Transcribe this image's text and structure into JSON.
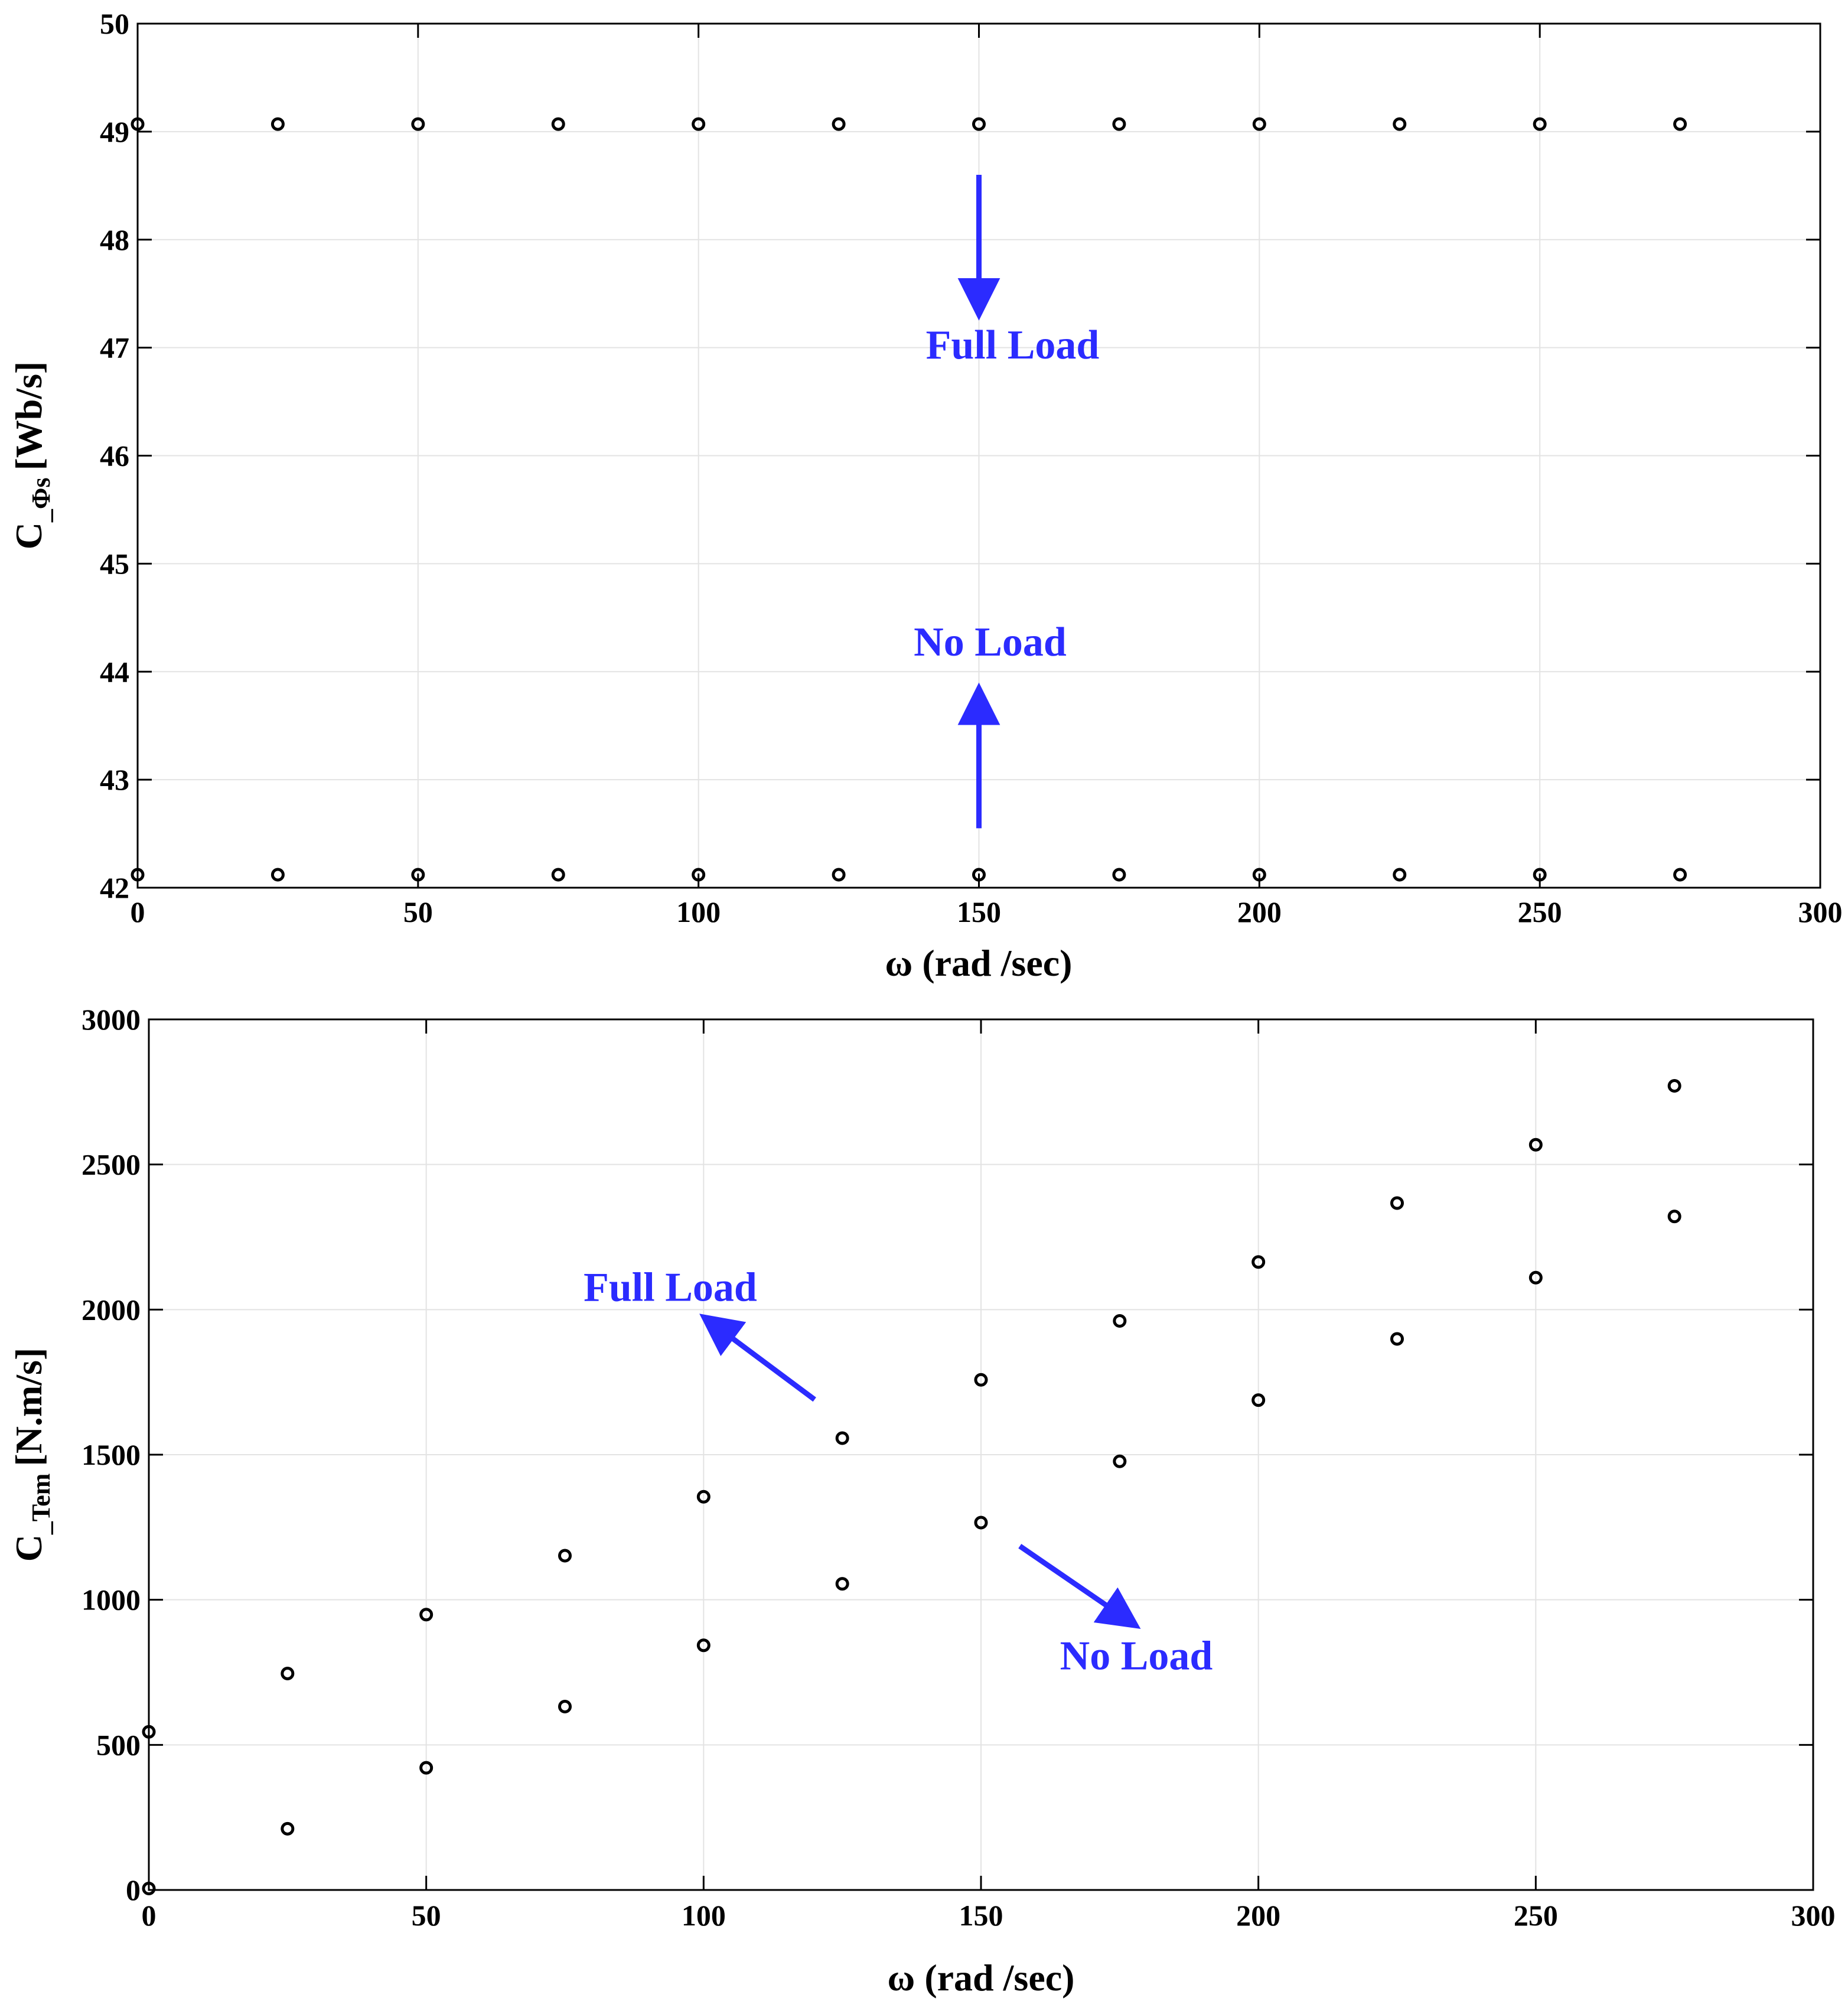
{
  "chart_data": [
    {
      "type": "scatter",
      "xlabel": "ω (rad /sec)",
      "ylabel_main": "C",
      "ylabel_sub": "_Φs",
      "ylabel_unit": "[Wb/s]",
      "xlim": [
        0,
        300
      ],
      "ylim": [
        42,
        50
      ],
      "xticks": [
        0,
        50,
        100,
        150,
        200,
        250,
        300
      ],
      "yticks": [
        42,
        43,
        44,
        45,
        46,
        47,
        48,
        49,
        50
      ],
      "grid": true,
      "series": [
        {
          "x": [
            0,
            25,
            50,
            75,
            100,
            125,
            150,
            175,
            200,
            225,
            250,
            275
          ],
          "y": [
            49.07,
            49.07,
            49.07,
            49.07,
            49.07,
            49.07,
            49.07,
            49.07,
            49.07,
            49.07,
            49.07,
            49.07
          ]
        },
        {
          "x": [
            0,
            25,
            50,
            75,
            100,
            125,
            150,
            175,
            200,
            225,
            250,
            275
          ],
          "y": [
            42.12,
            42.12,
            42.12,
            42.12,
            42.12,
            42.12,
            42.12,
            42.12,
            42.12,
            42.12,
            42.12,
            42.12
          ]
        }
      ],
      "annotations": [
        {
          "text": "Full Load",
          "label_x": 156,
          "label_y": 46.9,
          "arrow_from": [
            150,
            48.6
          ],
          "arrow_to": [
            150,
            47.3
          ]
        },
        {
          "text": "No Load",
          "label_x": 152,
          "label_y": 44.15,
          "arrow_from": [
            150,
            42.55
          ],
          "arrow_to": [
            150,
            43.85
          ]
        }
      ],
      "annotation_color": "#2b2bff"
    },
    {
      "type": "scatter",
      "xlabel": "ω (rad /sec)",
      "ylabel_main": "C",
      "ylabel_sub": "_Tem",
      "ylabel_unit": "[N.m/s]",
      "xlim": [
        0,
        300
      ],
      "ylim": [
        0,
        3000
      ],
      "xticks": [
        0,
        50,
        100,
        150,
        200,
        250,
        300
      ],
      "yticks": [
        0,
        500,
        1000,
        1500,
        2000,
        2500,
        3000
      ],
      "grid": true,
      "series": [
        {
          "x": [
            0,
            25,
            50,
            75,
            100,
            125,
            150,
            175,
            200,
            225,
            250,
            275
          ],
          "y": [
            545,
            746,
            949,
            1152,
            1355,
            1557,
            1758,
            1961,
            2164,
            2367,
            2568,
            2771
          ]
        },
        {
          "x": [
            0,
            25,
            50,
            75,
            100,
            125,
            150,
            175,
            200,
            225,
            250,
            275
          ],
          "y": [
            5,
            211,
            421,
            632,
            843,
            1055,
            1266,
            1477,
            1688,
            1899,
            2110,
            2321
          ]
        }
      ],
      "annotations": [
        {
          "text": "Full Load",
          "label_x": 94,
          "label_y": 2030,
          "arrow_from": [
            120,
            1690
          ],
          "arrow_to": [
            100,
            1975
          ]
        },
        {
          "text": "No Load",
          "label_x": 178,
          "label_y": 760,
          "arrow_from": [
            157,
            1185
          ],
          "arrow_to": [
            178,
            910
          ]
        }
      ],
      "annotation_color": "#2b2bff"
    }
  ]
}
